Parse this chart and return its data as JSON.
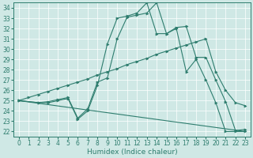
{
  "xlabel": "Humidex (Indice chaleur)",
  "xlim": [
    -0.5,
    23.5
  ],
  "ylim": [
    21.5,
    34.5
  ],
  "xticks": [
    0,
    1,
    2,
    3,
    4,
    5,
    6,
    7,
    8,
    9,
    10,
    11,
    12,
    13,
    14,
    15,
    16,
    17,
    18,
    19,
    20,
    21,
    22,
    23
  ],
  "yticks": [
    22,
    23,
    24,
    25,
    26,
    27,
    28,
    29,
    30,
    31,
    32,
    33,
    34
  ],
  "bg_color": "#cfe8e5",
  "line_color": "#2e7d6e",
  "grid_color": "#ffffff",
  "line1_x": [
    0,
    2,
    3,
    4,
    5,
    6,
    7,
    8,
    9,
    10,
    11,
    12,
    13,
    14,
    15,
    16,
    17,
    18,
    19,
    20,
    21,
    22,
    23
  ],
  "line1_y": [
    25.0,
    24.8,
    24.8,
    25.0,
    25.2,
    23.2,
    24.0,
    26.5,
    30.5,
    33.0,
    33.2,
    33.5,
    34.5,
    31.5,
    31.5,
    32.0,
    27.8,
    29.0,
    27.0,
    24.8,
    22.0,
    22.0,
    22.0
  ],
  "line2_x": [
    0,
    2,
    3,
    4,
    5,
    6,
    7,
    8,
    9,
    10,
    11,
    12,
    13,
    14,
    15,
    16,
    17,
    18,
    19,
    20,
    21,
    22,
    23
  ],
  "line2_y": [
    25.0,
    24.8,
    24.9,
    25.1,
    25.3,
    23.3,
    24.2,
    26.8,
    27.2,
    31.0,
    33.1,
    33.3,
    33.5,
    34.5,
    31.5,
    32.1,
    32.2,
    29.2,
    29.2,
    27.0,
    24.9,
    22.1,
    22.2
  ],
  "line3_x": [
    0,
    1,
    2,
    3,
    4,
    5,
    6,
    7,
    8,
    9,
    10,
    11,
    12,
    13,
    14,
    15,
    16,
    17,
    18,
    19,
    20,
    21,
    22,
    23
  ],
  "line3_y": [
    25.0,
    25.3,
    25.6,
    25.9,
    26.2,
    26.5,
    26.8,
    27.1,
    27.5,
    27.8,
    28.1,
    28.5,
    28.8,
    29.1,
    29.5,
    29.8,
    30.1,
    30.4,
    30.7,
    31.0,
    27.8,
    26.0,
    24.8,
    24.5
  ],
  "line4_x": [
    0,
    23
  ],
  "line4_y": [
    25.0,
    22.0
  ],
  "tick_fontsize": 5.5,
  "label_fontsize": 6.5
}
